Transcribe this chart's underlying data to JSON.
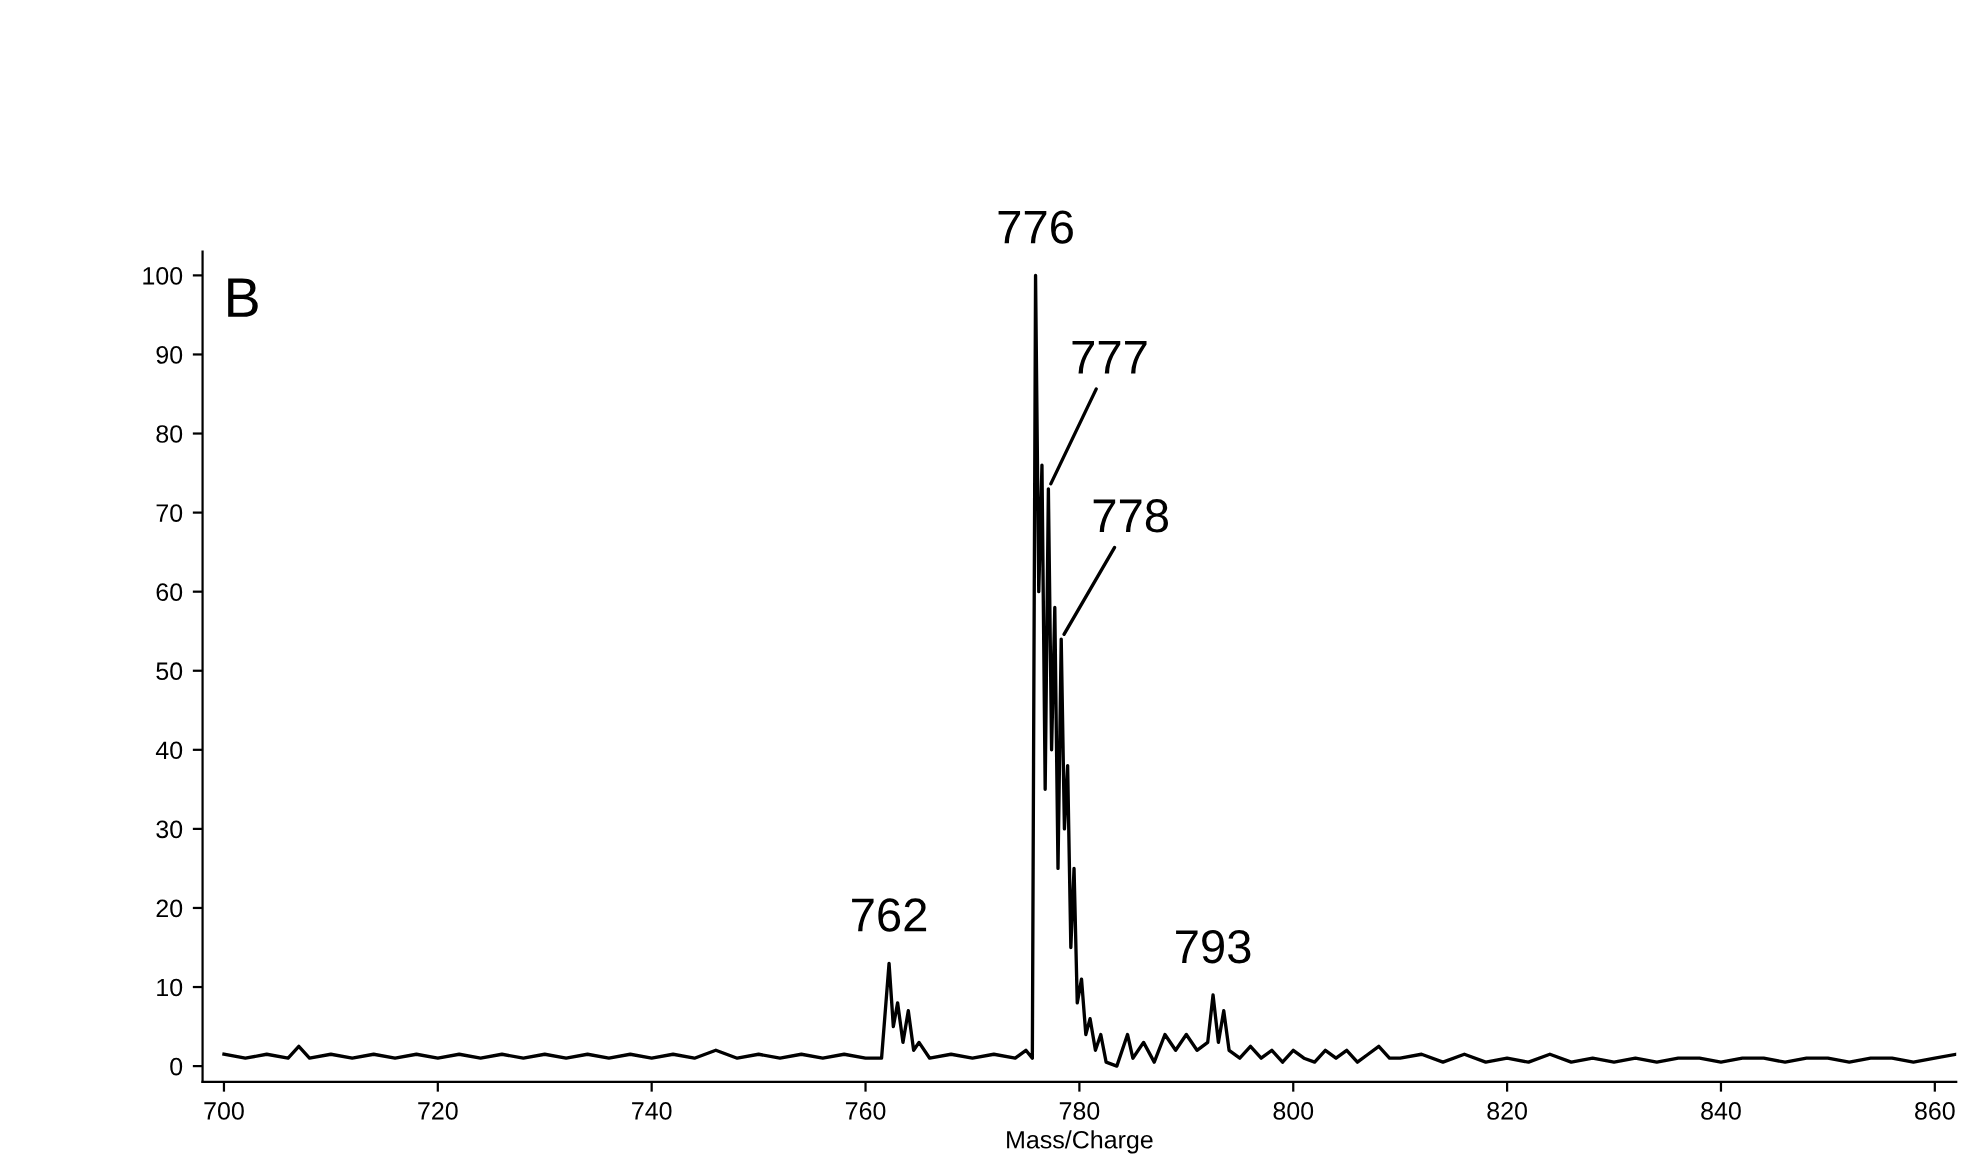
{
  "chart_data": {
    "type": "line",
    "xlabel": "Mass/Charge",
    "x": [
      700,
      702,
      704,
      706,
      707,
      708,
      710,
      712,
      714,
      716,
      718,
      720,
      722,
      724,
      726,
      728,
      730,
      732,
      734,
      736,
      738,
      740,
      742,
      744,
      746,
      748,
      750,
      752,
      754,
      756,
      758,
      760,
      761.5,
      762.2,
      762.6,
      763,
      763.5,
      764,
      764.5,
      765,
      766,
      768,
      770,
      772,
      774,
      775,
      775.6,
      775.9,
      776.2,
      776.5,
      776.8,
      777.1,
      777.4,
      777.7,
      778,
      778.3,
      778.6,
      778.9,
      779.2,
      779.5,
      779.8,
      780.2,
      780.6,
      781,
      781.5,
      782,
      782.5,
      783.5,
      784.5,
      785,
      786,
      787,
      788,
      789,
      790,
      791,
      792,
      792.5,
      793,
      793.5,
      794,
      795,
      796,
      797,
      798,
      799,
      800,
      801,
      802,
      803,
      804,
      805,
      806,
      807,
      808,
      809,
      810,
      812,
      814,
      816,
      818,
      820,
      822,
      824,
      826,
      828,
      830,
      832,
      834,
      836,
      838,
      840,
      842,
      844,
      846,
      848,
      850,
      852,
      854,
      856,
      858,
      860,
      862
    ],
    "values": [
      1.5,
      1,
      1.5,
      1,
      2.5,
      1,
      1.5,
      1,
      1.5,
      1,
      1.5,
      1,
      1.5,
      1,
      1.5,
      1,
      1.5,
      1,
      1.5,
      1,
      1.5,
      1,
      1.5,
      1,
      2,
      1,
      1.5,
      1,
      1.5,
      1,
      1.5,
      1,
      1,
      13,
      5,
      8,
      3,
      7,
      2,
      3,
      1,
      1.5,
      1,
      1.5,
      1,
      2,
      1,
      100,
      60,
      76,
      35,
      73,
      40,
      58,
      25,
      54,
      30,
      38,
      15,
      25,
      8,
      11,
      4,
      6,
      2,
      4,
      0.5,
      0,
      4,
      1,
      3,
      0.5,
      4,
      2,
      4,
      2,
      3,
      9,
      3,
      7,
      2,
      1,
      2.5,
      1,
      2,
      0.5,
      2,
      1,
      0.5,
      2,
      1,
      2,
      0.5,
      1.5,
      2.5,
      1,
      1,
      1.5,
      0.5,
      1.5,
      0.5,
      1,
      0.5,
      1.5,
      0.5,
      1,
      0.5,
      1,
      0.5,
      1,
      1,
      0.5,
      1,
      1,
      0.5,
      1,
      1,
      0.5,
      1,
      1,
      0.5,
      1,
      1.5
    ],
    "color": "#000000",
    "line_style": "solid",
    "marker": "none",
    "xlim": [
      698,
      862
    ],
    "ylim": [
      -2,
      103
    ],
    "xticks": [
      700,
      720,
      740,
      760,
      780,
      800,
      820,
      840,
      860
    ],
    "yticks": [
      0,
      10,
      20,
      30,
      40,
      50,
      60,
      70,
      80,
      90,
      100
    ],
    "grid": false,
    "legend": false,
    "annotations": [
      "B",
      {
        "text": "776",
        "x": 775.9,
        "y": 100
      },
      {
        "text": "777",
        "x": 777.1,
        "y": 73
      },
      {
        "text": "778",
        "x": 778.3,
        "y": 54
      },
      {
        "text": "762",
        "x": 762.2,
        "y": 13
      },
      {
        "text": "793",
        "x": 792.5,
        "y": 9
      }
    ]
  }
}
